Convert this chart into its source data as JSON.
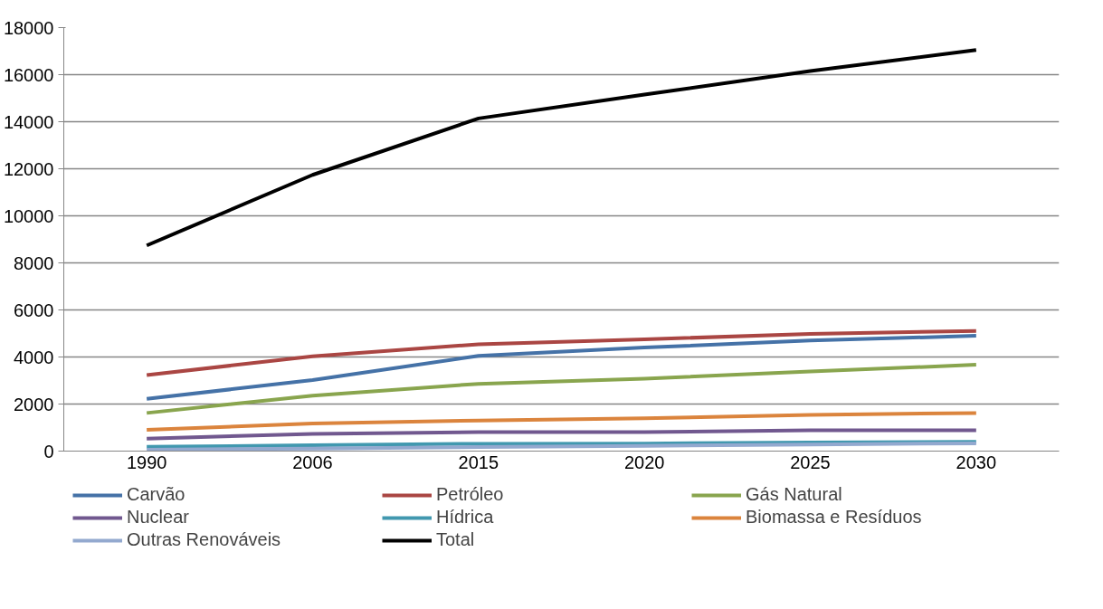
{
  "chart_data": {
    "type": "line",
    "categories": [
      "1990",
      "2006",
      "2015",
      "2020",
      "2025",
      "2030"
    ],
    "series": [
      {
        "name": "Carvão",
        "color": "#4572a7",
        "values": [
          2220,
          3020,
          4050,
          4400,
          4700,
          4900
        ]
      },
      {
        "name": "Petróleo",
        "color": "#aa4643",
        "values": [
          3230,
          4030,
          4540,
          4750,
          4980,
          5110
        ]
      },
      {
        "name": "Gás Natural",
        "color": "#89a54e",
        "values": [
          1620,
          2360,
          2860,
          3080,
          3380,
          3670
        ]
      },
      {
        "name": "Nuclear",
        "color": "#71588f",
        "values": [
          530,
          730,
          810,
          810,
          880,
          880
        ]
      },
      {
        "name": "Hídrica",
        "color": "#4198af",
        "values": [
          180,
          250,
          310,
          320,
          370,
          390
        ]
      },
      {
        "name": "Biomassa e Resíduos",
        "color": "#db843d",
        "values": [
          900,
          1170,
          1300,
          1390,
          1540,
          1620
        ]
      },
      {
        "name": "Outras Renováveis",
        "color": "#93a9cf",
        "values": [
          60,
          110,
          170,
          220,
          280,
          330
        ]
      },
      {
        "name": "Total",
        "color": "#000000",
        "values": [
          8740,
          11740,
          14140,
          15150,
          16150,
          17050
        ]
      }
    ],
    "ylim": [
      0,
      18000
    ],
    "yticks": [
      0,
      2000,
      4000,
      6000,
      8000,
      10000,
      12000,
      14000,
      16000,
      18000
    ],
    "grid": "y",
    "legend": "bottom",
    "marker": "none",
    "line_style": "solid"
  }
}
